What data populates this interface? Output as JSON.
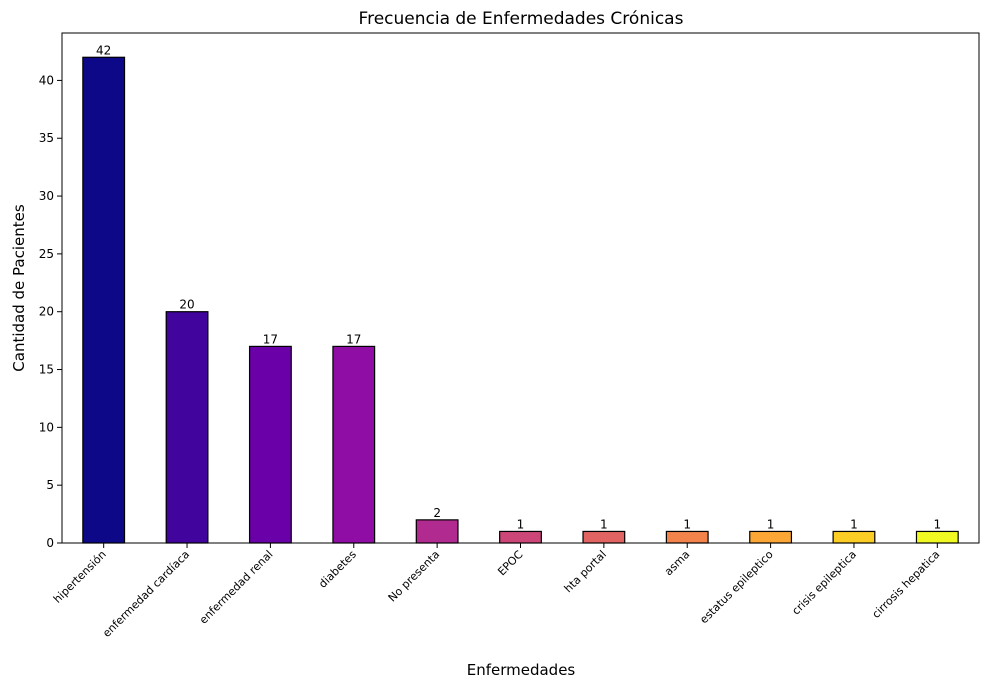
{
  "chart_data": {
    "type": "bar",
    "title": "Frecuencia de Enfermedades Crónicas",
    "xlabel": "Enfermedades",
    "ylabel": "Cantidad de Pacientes",
    "categories": [
      "hipertensión",
      "enfermedad cardíaca",
      "enfermedad renal",
      "diabetes",
      "No presenta",
      "EPOC",
      "hta portal",
      "asma",
      "estatus epileptico",
      "crisis epileptica",
      "cirrosis hepatica"
    ],
    "values": [
      42,
      20,
      17,
      17,
      2,
      1,
      1,
      1,
      1,
      1,
      1
    ],
    "colors": [
      "#0d0887",
      "#41049d",
      "#6a00a8",
      "#8f0da4",
      "#b12a90",
      "#cc4778",
      "#e16462",
      "#f2844b",
      "#fca636",
      "#fcce25",
      "#f0f921"
    ],
    "bar_edge_color": "#000000",
    "ylim": [
      0,
      44.1
    ],
    "yticks": [
      0,
      5,
      10,
      15,
      20,
      25,
      30,
      35,
      40
    ],
    "grid": false,
    "legend": false
  }
}
